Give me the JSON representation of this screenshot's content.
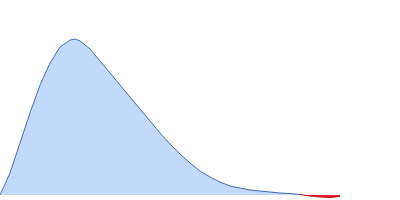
{
  "chart_data": {
    "type": "area",
    "x": [
      0,
      10,
      20,
      30,
      40,
      50,
      60,
      70,
      75,
      80,
      90,
      100,
      110,
      120,
      130,
      140,
      150,
      160,
      170,
      180,
      190,
      200,
      210,
      220,
      230,
      240,
      250,
      260,
      270,
      280,
      290,
      300,
      310,
      320,
      330,
      340
    ],
    "series": [
      {
        "type": "area",
        "color": "#c3d9fb",
        "values": [
          0,
          22,
          52,
          82,
          110,
          132,
          148,
          155,
          156,
          154,
          146,
          134,
          122,
          110,
          98,
          86,
          74,
          62,
          51,
          41,
          32,
          24,
          18,
          13,
          9,
          7,
          5,
          4,
          3,
          2,
          1.5,
          0.5,
          null,
          null,
          null,
          null
        ]
      },
      {
        "type": "area",
        "color": "#e0202a",
        "values": [
          null,
          null,
          null,
          null,
          null,
          null,
          null,
          null,
          null,
          null,
          null,
          null,
          null,
          null,
          null,
          null,
          null,
          null,
          null,
          null,
          null,
          null,
          null,
          null,
          null,
          null,
          null,
          null,
          null,
          null,
          null,
          0.5,
          -1,
          -2,
          -2.5,
          -1.5
        ]
      }
    ],
    "xlim": [
      0,
      400
    ],
    "ylim": [
      -5,
      195
    ],
    "tick_labels": false,
    "grid": false
  }
}
